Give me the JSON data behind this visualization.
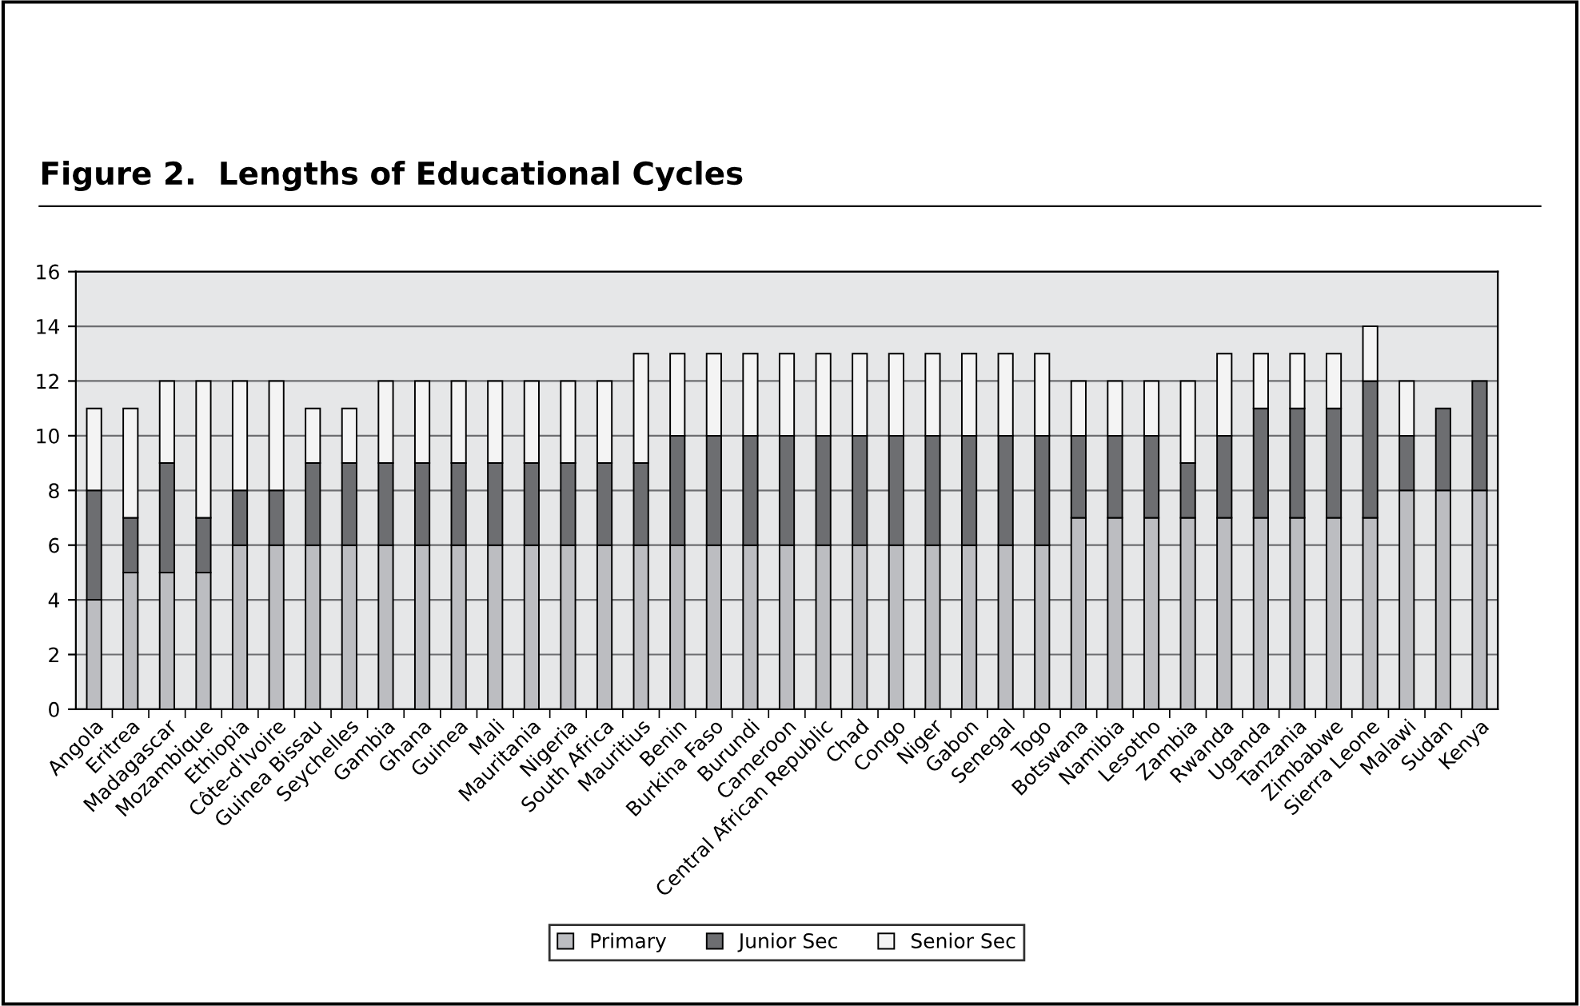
{
  "chart_data": {
    "type": "bar",
    "title": "Figure 2.  Lengths of Educational Cycles",
    "stacked": true,
    "categories": [
      "Angola",
      "Eritrea",
      "Madagascar",
      "Mozambique",
      "Ethiopia",
      "Côte-d'Ivoire",
      "Guinea Bissau",
      "Seychelles",
      "Gambia",
      "Ghana",
      "Guinea",
      "Mali",
      "Mauritania",
      "Nigeria",
      "South Africa",
      "Mauritius",
      "Benin",
      "Burkina Faso",
      "Burundi",
      "Cameroon",
      "Central African Republic",
      "Chad",
      "Congo",
      "Niger",
      "Gabon",
      "Senegal",
      "Togo",
      "Botswana",
      "Namibia",
      "Lesotho",
      "Zambia",
      "Rwanda",
      "Uganda",
      "Tanzania",
      "Zimbabwe",
      "Sierra Leone",
      "Malawi",
      "Sudan",
      "Kenya"
    ],
    "series": [
      {
        "name": "Primary",
        "color": "#bcbdc1",
        "values": [
          4,
          5,
          5,
          5,
          6,
          6,
          6,
          6,
          6,
          6,
          6,
          6,
          6,
          6,
          6,
          6,
          6,
          6,
          6,
          6,
          6,
          6,
          6,
          6,
          6,
          6,
          6,
          7,
          7,
          7,
          7,
          7,
          7,
          7,
          7,
          7,
          8,
          8,
          8
        ]
      },
      {
        "name": "Junior Sec",
        "color": "#6d6e71",
        "values": [
          4,
          2,
          4,
          2,
          2,
          2,
          3,
          3,
          3,
          3,
          3,
          3,
          3,
          3,
          3,
          3,
          4,
          4,
          4,
          4,
          4,
          4,
          4,
          4,
          4,
          4,
          4,
          3,
          3,
          3,
          2,
          3,
          4,
          4,
          4,
          5,
          2,
          3,
          4
        ]
      },
      {
        "name": "Senior Sec",
        "color": "#f4f4f4",
        "values": [
          3,
          4,
          3,
          5,
          4,
          4,
          2,
          2,
          3,
          3,
          3,
          3,
          3,
          3,
          3,
          4,
          3,
          3,
          3,
          3,
          3,
          3,
          3,
          3,
          3,
          3,
          3,
          2,
          2,
          2,
          3,
          3,
          2,
          2,
          2,
          2,
          2,
          null,
          null
        ]
      }
    ],
    "ylim": [
      0,
      16
    ],
    "yticks": [
      0,
      2,
      4,
      6,
      8,
      10,
      12,
      14,
      16
    ],
    "grid": "y",
    "legend": "bottom"
  }
}
